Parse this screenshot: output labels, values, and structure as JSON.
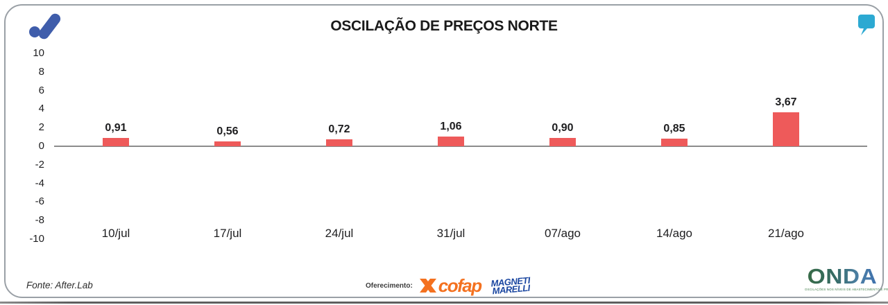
{
  "title": "OSCILAÇÃO DE PREÇOS NORTE",
  "chart_data": {
    "type": "bar",
    "categories": [
      "10/jul",
      "17/jul",
      "24/jul",
      "31/jul",
      "07/ago",
      "14/ago",
      "21/ago"
    ],
    "values": [
      0.91,
      0.56,
      0.72,
      1.06,
      0.9,
      0.85,
      3.67
    ],
    "value_labels": [
      "0,91",
      "0,56",
      "0,72",
      "1,06",
      "0,90",
      "0,85",
      "3,67"
    ],
    "title": "OSCILAÇÃO DE PREÇOS NORTE",
    "xlabel": "",
    "ylabel": "",
    "ylim": [
      -10,
      10
    ],
    "yticks": [
      "10",
      "8",
      "6",
      "4",
      "2",
      "0",
      "-2",
      "-4",
      "-6",
      "-8",
      "-10"
    ],
    "ytick_values": [
      10,
      8,
      6,
      4,
      2,
      0,
      -2,
      -4,
      -6,
      -8,
      -10
    ],
    "bar_color": "#ee5a5a",
    "axis_line_color": "#8c8c8c",
    "grid": false,
    "legend": "none"
  },
  "footer": {
    "source": "Fonte: After.Lab",
    "sponsor_label": "Oferecimento:",
    "sponsors": [
      {
        "name": "cofap",
        "color": "#f4711f"
      },
      {
        "name_line1": "MAGNETI",
        "name_line2": "MARELLI",
        "color": "#1a46a0"
      }
    ]
  },
  "branding": {
    "afterlab_logo_color": "#3f5dab",
    "quote_mark_color": "#2ca9d2",
    "onda": {
      "name": "ONDA",
      "tagline": "OSCILAÇÕES NOS NÍVEIS DE ABASTECIMENTO E PREÇO"
    }
  }
}
